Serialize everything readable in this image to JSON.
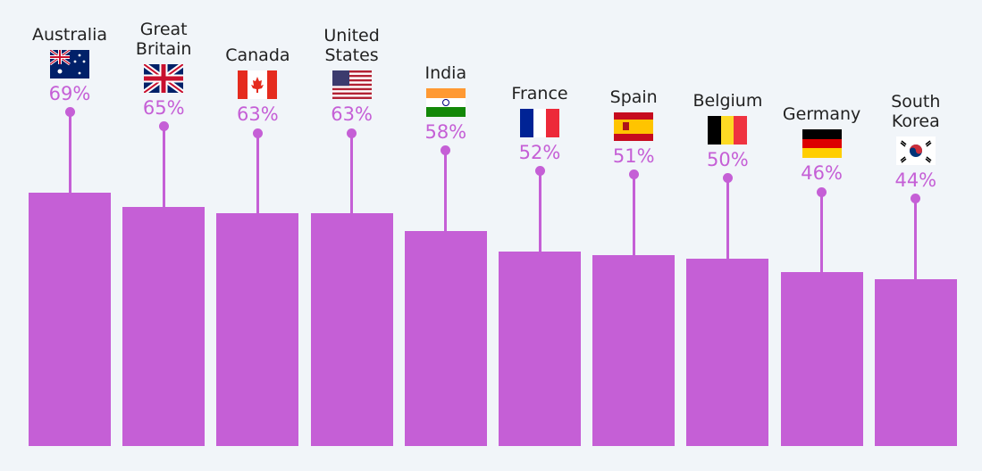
{
  "chart_data": {
    "type": "bar",
    "title": "",
    "xlabel": "",
    "ylabel": "",
    "grid": false,
    "bar_color": "#c55fd6",
    "background": "#f1f5f9",
    "categories": [
      "Australia",
      "Great Britain",
      "Canada",
      "United States",
      "India",
      "France",
      "Spain",
      "Belgium",
      "Germany",
      "South Korea"
    ],
    "values": [
      69,
      65,
      63,
      63,
      58,
      52,
      51,
      50,
      46,
      44
    ],
    "value_labels": [
      "69%",
      "65%",
      "63%",
      "63%",
      "58%",
      "52%",
      "51%",
      "50%",
      "46%",
      "44%"
    ],
    "flags": [
      "australia-flag",
      "uk-flag",
      "canada-flag",
      "usa-flag",
      "india-flag",
      "france-flag",
      "spain-flag",
      "belgium-flag",
      "germany-flag",
      "south-korea-flag"
    ]
  }
}
